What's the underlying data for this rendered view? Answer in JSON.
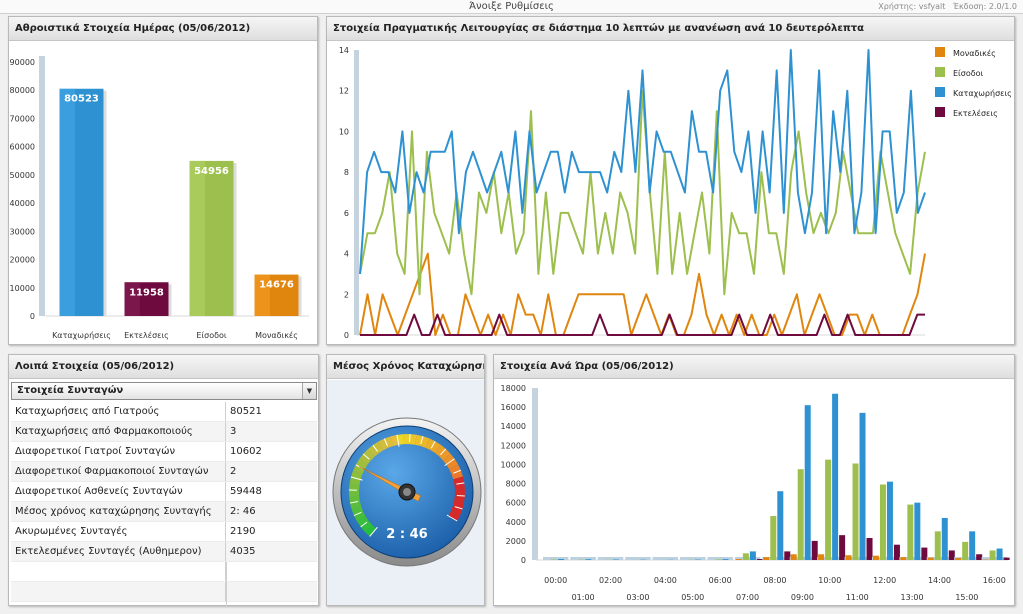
{
  "topbar": {
    "title": "Άνοιξε Ρυθμίσεις",
    "user": "Χρήστης: vsfyalt",
    "version": "Έκδοση: 2.0/1.0"
  },
  "colors": {
    "katax": "#2e92d2",
    "ekteles": "#6e0a3e",
    "eisodoi": "#9dbf4e",
    "monadikes": "#e0860e",
    "stub": "#bcd0e0"
  },
  "daily": {
    "title": "Αθροιστικά Στοιχεία Ημέρας (05/06/2012)",
    "chart_data": {
      "type": "bar",
      "categories": [
        "Καταχωρήσεις",
        "Εκτελέσεις",
        "Είσοδοι",
        "Μοναδικές"
      ],
      "values": [
        80523,
        11958,
        54956,
        14676
      ],
      "value_labels": [
        "80523",
        "11958",
        "54956",
        "14676"
      ],
      "colors": [
        "#2e92d2",
        "#6e0a3e",
        "#9dbf4e",
        "#e0860e"
      ],
      "ylim": [
        0,
        90000
      ],
      "yticks": [
        0,
        10000,
        20000,
        30000,
        40000,
        50000,
        60000,
        70000,
        80000,
        90000
      ],
      "title": "Αθροιστικά Στοιχεία Ημέρας (05/06/2012)",
      "xlabel": "",
      "ylabel": ""
    }
  },
  "realtime": {
    "title": "Στοιχεία Πραγματικής Λειτουργίας σε διάστημα 10 λεπτών με ανανέωση ανά 10 δευτερόλεπτα",
    "chart_data": {
      "type": "line",
      "ylim": [
        0,
        14
      ],
      "yticks": [
        0,
        2,
        4,
        6,
        8,
        10,
        12,
        14
      ],
      "legend": "right",
      "series": [
        {
          "name": "Μοναδικές",
          "color": "#e0860e",
          "values": [
            0,
            2,
            0,
            2,
            1,
            0,
            1,
            2,
            3,
            4,
            0,
            1,
            0,
            0,
            2,
            1,
            0,
            1,
            0,
            1,
            0,
            2,
            1,
            1,
            0,
            2,
            0,
            0,
            1,
            2,
            2,
            2,
            2,
            2,
            2,
            2,
            0,
            1,
            2,
            1,
            0,
            1,
            0,
            0,
            1,
            3,
            1,
            0,
            1,
            0,
            1,
            0,
            1,
            0,
            0,
            1,
            0,
            1,
            2,
            0,
            1,
            2,
            1,
            0,
            0,
            1,
            1,
            0,
            1,
            0,
            0,
            0,
            0,
            1,
            2,
            4
          ]
        },
        {
          "name": "Είσοδοι",
          "color": "#9dbf4e",
          "values": [
            3,
            5,
            5,
            6,
            8,
            4,
            3,
            10,
            2,
            9,
            6,
            5,
            4,
            7,
            4,
            2,
            7,
            6,
            8,
            5,
            7,
            4,
            5,
            11,
            3,
            7,
            3,
            6,
            6,
            5,
            4,
            8,
            4,
            6,
            4,
            7,
            6,
            4,
            12,
            7,
            3,
            9,
            3,
            6,
            3,
            5,
            7,
            4,
            11,
            2,
            6,
            5,
            5,
            3,
            8,
            5,
            5,
            3,
            8,
            10,
            7,
            5,
            6,
            5,
            6,
            9,
            7,
            5,
            5,
            5,
            9,
            7,
            5,
            4,
            3,
            7,
            9
          ]
        },
        {
          "name": "Καταχωρήσεις",
          "color": "#2e92d2",
          "values": [
            3,
            8,
            9,
            8,
            8,
            7,
            10,
            6,
            8,
            7,
            9,
            9,
            9,
            10,
            5,
            8,
            9,
            8,
            7,
            8,
            9,
            7,
            10,
            6,
            10,
            7,
            8,
            9,
            9,
            7,
            9,
            8,
            8,
            8,
            8,
            7,
            9,
            8,
            12,
            8,
            13,
            7,
            10,
            9,
            9,
            8,
            7,
            11,
            9,
            9,
            7,
            12,
            13,
            9,
            8,
            10,
            6,
            10,
            7,
            13,
            6,
            14,
            7,
            5,
            7,
            13,
            5,
            11,
            8,
            12,
            5,
            7,
            14,
            5,
            10,
            10,
            6,
            7,
            12,
            6,
            7
          ]
        },
        {
          "name": "Εκτελέσεις",
          "color": "#6e0a3e",
          "values": [
            0,
            0,
            0,
            0,
            0,
            0,
            0,
            1,
            0,
            0,
            1,
            0,
            0,
            0,
            0,
            0,
            0,
            0,
            1,
            0,
            0,
            0,
            0,
            0,
            0,
            0,
            0,
            0,
            0,
            0,
            0,
            1,
            0,
            0,
            0,
            0,
            0,
            0,
            0,
            0,
            1,
            0,
            0,
            0,
            0,
            0,
            0,
            0,
            0,
            1,
            0,
            0,
            0,
            1,
            0,
            0,
            0,
            0,
            0,
            0,
            1,
            0,
            0,
            1,
            0,
            0,
            0,
            0,
            0,
            0,
            0,
            0,
            1,
            1
          ]
        }
      ]
    }
  },
  "other": {
    "title": "Λοιπά Στοιχεία (05/06/2012)",
    "select_value": "Στοιχεία Συνταγών",
    "rows": [
      {
        "label": "Καταχωρήσεις από Γιατρούς",
        "value": "80521"
      },
      {
        "label": "Καταχωρήσεις από Φαρμακοποιούς",
        "value": "3"
      },
      {
        "label": "Διαφορετικοί Γιατροί Συνταγών",
        "value": "10602"
      },
      {
        "label": "Διαφορετικοί Φαρμακοποιοί Συνταγών",
        "value": "2"
      },
      {
        "label": "Διαφορετικοί Ασθενείς Συνταγών",
        "value": "59448"
      },
      {
        "label": "Μέσος χρόνος καταχώρησης Συνταγής",
        "value": "2: 46"
      },
      {
        "label": "Ακυρωμένες Συνταγές",
        "value": "2190"
      },
      {
        "label": "Εκτελεσμένες Συνταγές (Αυθημερον)",
        "value": "4035"
      }
    ]
  },
  "avg": {
    "title": "Μέσος Χρόνος Καταχώρησης",
    "value_text": "2 : 46",
    "needle_fraction": 0.3
  },
  "hourly": {
    "title": "Στοιχεία Ανά Ώρα (05/06/2012)",
    "chart_data": {
      "type": "bar",
      "categories": [
        "00:00",
        "01:00",
        "02:00",
        "03:00",
        "04:00",
        "05:00",
        "06:00",
        "07:00",
        "08:00",
        "09:00",
        "10:00",
        "11:00",
        "12:00",
        "13:00",
        "14:00",
        "15:00",
        "16:00"
      ],
      "ylim": [
        0,
        18000
      ],
      "yticks": [
        0,
        2000,
        4000,
        6000,
        8000,
        10000,
        12000,
        14000,
        16000,
        18000
      ],
      "series": [
        {
          "name": "Μοναδικές",
          "color": "#e0860e",
          "values": [
            0,
            0,
            0,
            0,
            0,
            0,
            0,
            100,
            300,
            600,
            600,
            500,
            450,
            300,
            250,
            200,
            50
          ]
        },
        {
          "name": "Είσοδοι",
          "color": "#9dbf4e",
          "values": [
            50,
            30,
            20,
            10,
            10,
            20,
            60,
            700,
            4600,
            9500,
            10500,
            10100,
            7900,
            5800,
            3000,
            1900,
            1000
          ]
        },
        {
          "name": "Καταχωρήσεις",
          "color": "#2e92d2",
          "values": [
            100,
            80,
            50,
            30,
            20,
            40,
            90,
            900,
            7200,
            16200,
            17400,
            15400,
            8200,
            6000,
            4400,
            3000,
            1200
          ]
        },
        {
          "name": "Εκτελέσεις",
          "color": "#6e0a3e",
          "values": [
            0,
            0,
            0,
            0,
            0,
            0,
            0,
            100,
            900,
            2000,
            2600,
            2300,
            1600,
            1300,
            1000,
            600,
            250
          ]
        }
      ]
    }
  }
}
